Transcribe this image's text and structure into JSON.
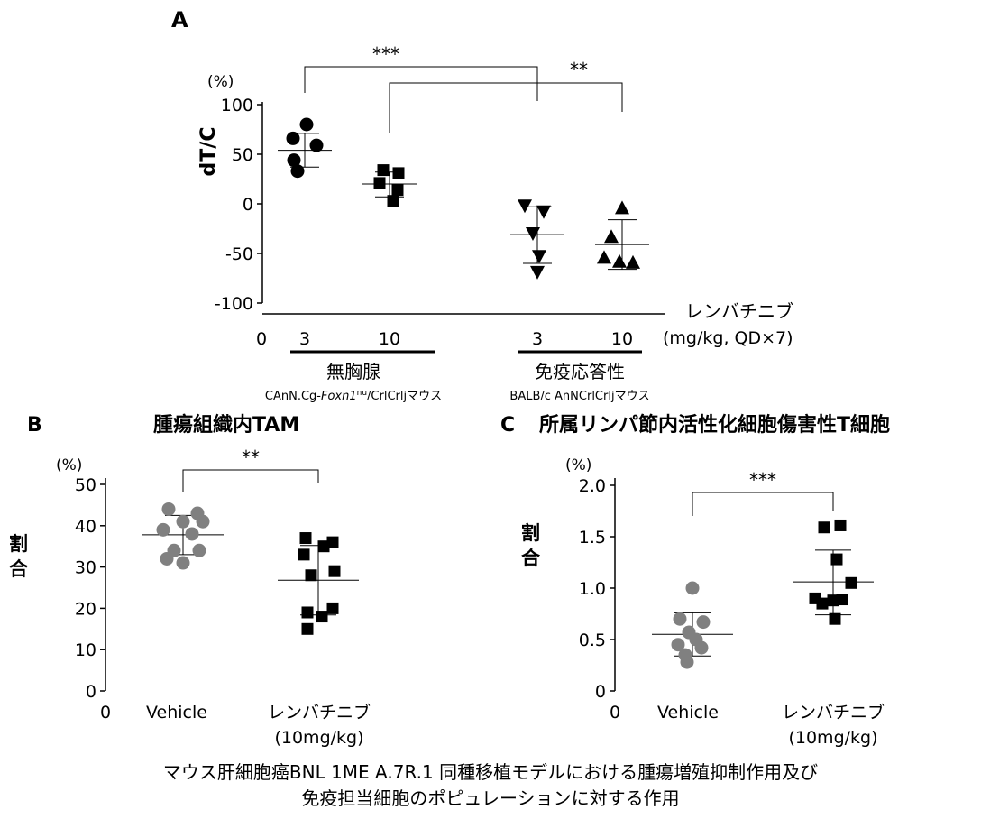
{
  "panel_a": {
    "letter": "A",
    "unit": "(%)",
    "ylabel": "dT/C",
    "axis_zero": "0",
    "drug_label": "レンバチニブ",
    "dose_label": "(mg/kg, QD×7)",
    "group1_name": "無胸腺",
    "group1_strain_a": "CAnN.Cg-",
    "group1_strain_b": "Foxn1",
    "group1_strain_c": "nu",
    "group1_strain_d": "/CrlCrljマウス",
    "group2_name": "免疫応答性",
    "group2_strain": "BALB/c AnNCrlCrljマウス",
    "sig1": "***",
    "sig2": "**"
  },
  "panel_b": {
    "letter": "B",
    "title": "腫瘍組織内TAM",
    "unit": "(%)",
    "ylabel": "割合",
    "axis_zero": "0",
    "cat1": "Vehicle",
    "cat2_line1": "レンバチニブ",
    "cat2_line2": "(10mg/kg)",
    "sig": "**"
  },
  "panel_c": {
    "letter": "C",
    "title": "所属リンパ節内活性化細胞傷害性T細胞",
    "unit": "(%)",
    "ylabel": "割合",
    "axis_zero": "0",
    "cat1": "Vehicle",
    "cat2_line1": "レンバチニブ",
    "cat2_line2": "(10mg/kg)",
    "sig": "***"
  },
  "caption_line1": "マウス肝細胞癌BNL 1ME A.7R.1 同種移植モデルにおける腫瘍増殖抑制作用及び",
  "caption_line2": "免疫担当細胞のポピュレーションに対する作用",
  "chart_data": [
    {
      "type": "scatter",
      "panel": "A",
      "ylabel": "dT/C",
      "ylim": [
        -100,
        100
      ],
      "yticks": [
        "100",
        "50",
        "0",
        "-50",
        "-100"
      ],
      "xticks": [
        "3",
        "10",
        "3",
        "10"
      ],
      "series": [
        {
          "marker": "circle",
          "mean": 54,
          "sd_low": 37,
          "sd_high": 71,
          "values": [
            80,
            66,
            59,
            44,
            33
          ]
        },
        {
          "marker": "square",
          "mean": 20,
          "sd_low": 7,
          "sd_high": 32,
          "values": [
            34,
            31,
            21,
            14,
            3
          ]
        },
        {
          "marker": "triangle-down",
          "mean": -31,
          "sd_low": -60,
          "sd_high": -3,
          "values": [
            -2,
            -8,
            -30,
            -53,
            -69
          ]
        },
        {
          "marker": "triangle-up",
          "mean": -41,
          "sd_low": -66,
          "sd_high": -16,
          "values": [
            -4,
            -33,
            -54,
            -58,
            -59
          ]
        }
      ]
    },
    {
      "type": "scatter",
      "panel": "B",
      "ylabel": "割合",
      "ylim": [
        0,
        50
      ],
      "yticks": [
        "50",
        "40",
        "30",
        "20",
        "10",
        "0"
      ],
      "categories": [
        "Vehicle",
        "レンバチニブ (10mg/kg)"
      ],
      "series": [
        {
          "marker": "circle",
          "color": "#808080",
          "mean": 37.8,
          "sd_low": 33.0,
          "sd_high": 42.5,
          "values": [
            44,
            43,
            41,
            41,
            39,
            38,
            34,
            34,
            32,
            31
          ]
        },
        {
          "marker": "square",
          "color": "#000000",
          "mean": 26.8,
          "sd_low": 18.4,
          "sd_high": 35.2,
          "values": [
            37,
            36,
            35,
            33,
            29,
            28,
            20,
            19,
            18,
            15
          ]
        }
      ]
    },
    {
      "type": "scatter",
      "panel": "C",
      "ylabel": "割合",
      "ylim": [
        0,
        2.0
      ],
      "yticks": [
        "2.0",
        "1.5",
        "1.0",
        "0.5",
        "0"
      ],
      "categories": [
        "Vehicle",
        "レンバチニブ (10mg/kg)"
      ],
      "series": [
        {
          "marker": "circle",
          "color": "#808080",
          "mean": 0.55,
          "sd_low": 0.34,
          "sd_high": 0.76,
          "values": [
            1.0,
            0.7,
            0.67,
            0.57,
            0.5,
            0.45,
            0.42,
            0.35,
            0.28
          ]
        },
        {
          "marker": "square",
          "color": "#000000",
          "mean": 1.06,
          "sd_low": 0.74,
          "sd_high": 1.37,
          "values": [
            1.61,
            1.59,
            1.28,
            1.05,
            0.9,
            0.89,
            0.88,
            0.85,
            0.7
          ]
        }
      ]
    }
  ]
}
